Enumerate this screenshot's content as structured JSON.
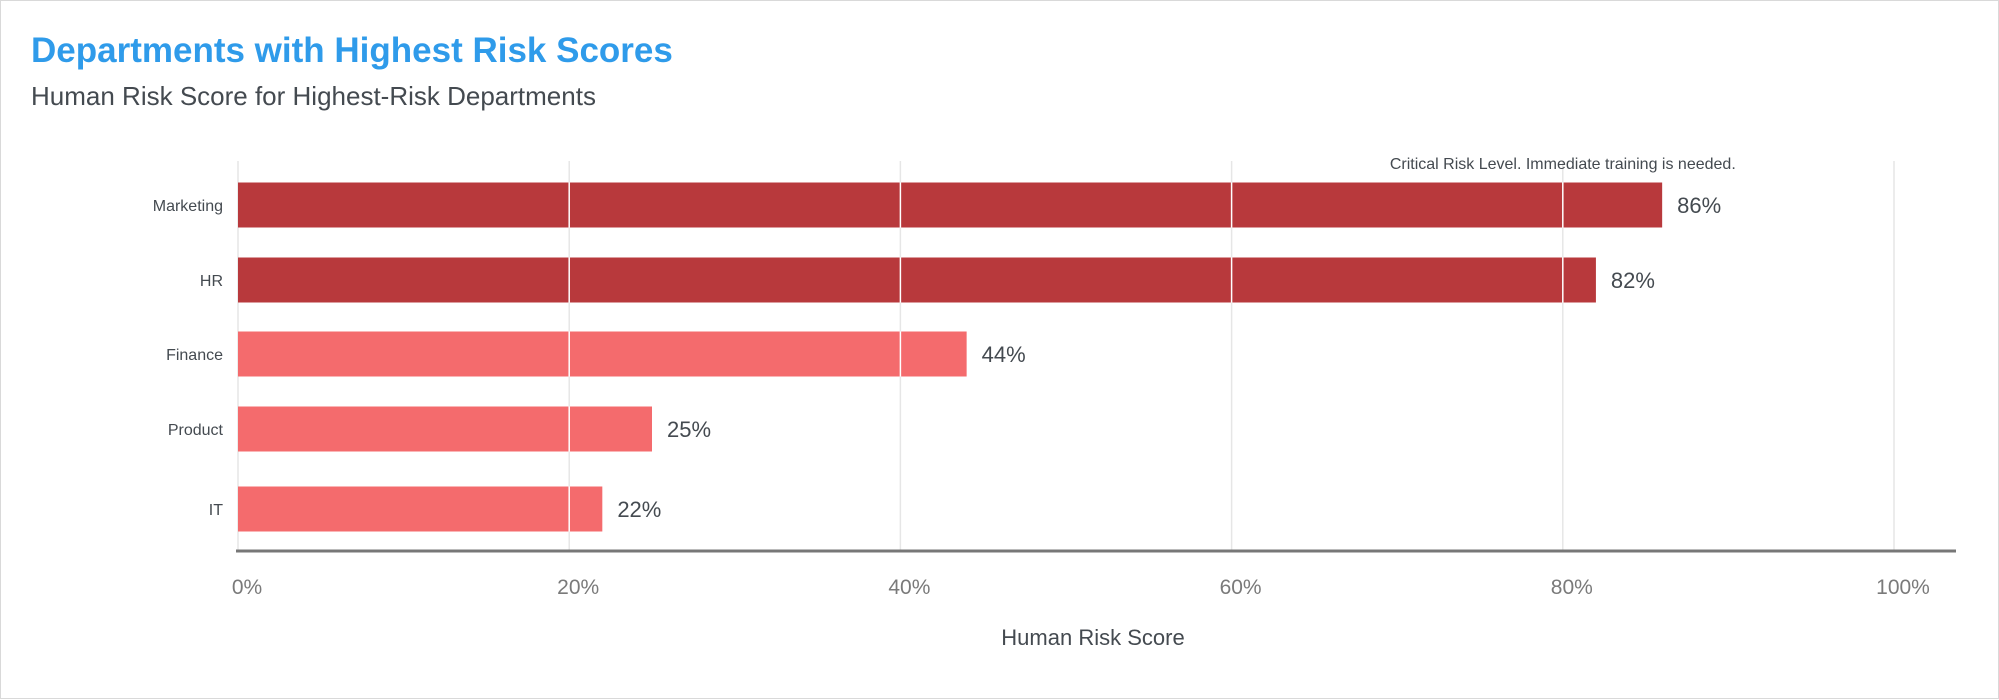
{
  "header": {
    "title": "Departments with Highest Risk Scores",
    "subtitle": "Human Risk Score for Highest-Risk Departments"
  },
  "colors": {
    "title": "#2f9bea",
    "critical_bar": "#b8393c",
    "high_bar": "#f46b6d",
    "grid": "#e6e6e6",
    "axis": "#777777",
    "text": "#444a50",
    "tick": "#7a7a7a"
  },
  "chart_data": {
    "type": "bar",
    "orientation": "horizontal",
    "title": "Departments with Highest Risk Scores",
    "subtitle": "Human Risk Score for Highest-Risk Departments",
    "xlabel": "Human Risk Score",
    "ylabel": "",
    "xlim": [
      0,
      100
    ],
    "x_ticks": [
      "0%",
      "20%",
      "40%",
      "60%",
      "80%",
      "100%"
    ],
    "x_tick_values": [
      0,
      20,
      40,
      60,
      80,
      100
    ],
    "categories": [
      "Marketing",
      "HR",
      "Finance",
      "Product",
      "IT"
    ],
    "values": [
      86,
      82,
      44,
      25,
      22
    ],
    "value_labels": [
      "86%",
      "82%",
      "44%",
      "25%",
      "22%"
    ],
    "levels": [
      "critical",
      "critical",
      "high",
      "high",
      "high"
    ],
    "grid": true,
    "annotation": {
      "text": "Critical Risk Level. Immediate training is needed.",
      "x": 80
    }
  }
}
